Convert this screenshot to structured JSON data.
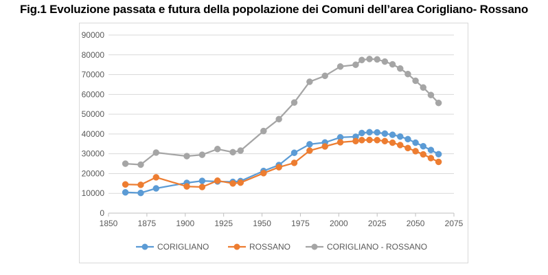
{
  "page": {
    "title": "Fig.1 Evoluzione passata e futura della popolazione dei Comuni dell’area Corigliano- Rossano"
  },
  "chart_data": {
    "type": "line",
    "title": "",
    "xlabel": "",
    "ylabel": "",
    "xlim": [
      1850,
      2075
    ],
    "ylim": [
      0,
      90000
    ],
    "x_ticks": [
      1850,
      1875,
      1900,
      1925,
      1950,
      1975,
      2000,
      2025,
      2050,
      2075
    ],
    "y_ticks": [
      0,
      10000,
      20000,
      30000,
      40000,
      50000,
      60000,
      70000,
      80000,
      90000
    ],
    "grid": "horizontal",
    "legend_position": "bottom",
    "series": [
      {
        "name": "CORIGLIANO",
        "color": "#5b9bd5",
        "x": [
          1861,
          1871,
          1881,
          1901,
          1911,
          1921,
          1931,
          1936,
          1951,
          1961,
          1971,
          1981,
          1991,
          2001,
          2011,
          2015,
          2020,
          2025,
          2030,
          2035,
          2040,
          2045,
          2050,
          2055,
          2060,
          2065
        ],
        "y": [
          10500,
          10200,
          12500,
          15300,
          16300,
          16000,
          15800,
          16200,
          21300,
          24300,
          30500,
          34800,
          35700,
          38300,
          38600,
          40500,
          40900,
          40800,
          40200,
          39600,
          38700,
          37400,
          35600,
          33800,
          31900,
          29800
        ]
      },
      {
        "name": "ROSSANO",
        "color": "#ed7d31",
        "x": [
          1861,
          1871,
          1881,
          1901,
          1911,
          1921,
          1931,
          1936,
          1951,
          1961,
          1971,
          1981,
          1991,
          2001,
          2011,
          2015,
          2020,
          2025,
          2030,
          2035,
          2040,
          2045,
          2050,
          2055,
          2060,
          2065
        ],
        "y": [
          14500,
          14300,
          18100,
          13500,
          13200,
          16400,
          15000,
          15400,
          20200,
          23200,
          25400,
          31600,
          33700,
          35800,
          36400,
          36900,
          37000,
          36900,
          36400,
          35600,
          34400,
          32900,
          31300,
          29700,
          27800,
          25900
        ]
      },
      {
        "name": "CORIGLIANO - ROSSANO",
        "color": "#a5a5a5",
        "x": [
          1861,
          1871,
          1881,
          1901,
          1911,
          1921,
          1931,
          1936,
          1951,
          1961,
          1971,
          1981,
          1991,
          2001,
          2011,
          2015,
          2020,
          2025,
          2030,
          2035,
          2040,
          2045,
          2050,
          2055,
          2060,
          2065
        ],
        "y": [
          25000,
          24500,
          30600,
          28800,
          29500,
          32400,
          30800,
          31600,
          41500,
          47500,
          55900,
          66400,
          69400,
          74100,
          75000,
          77400,
          77900,
          77700,
          76600,
          75200,
          73100,
          70300,
          66900,
          63500,
          59700,
          55700
        ]
      }
    ]
  }
}
